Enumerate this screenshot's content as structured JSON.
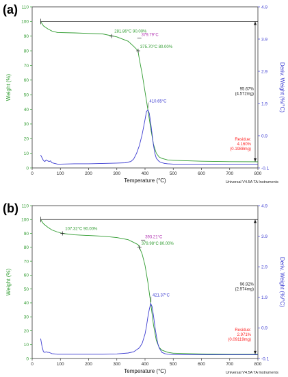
{
  "colors": {
    "weight": "#2e9b2e",
    "deriv": "#3a3ad0",
    "residue": "#ff2020",
    "annotation_dark": "#222222",
    "peak": "#b030b0",
    "axis": "#333333"
  },
  "chart_data": [
    {
      "type": "line",
      "panel_label": "(a)",
      "xlabel": "Temperature (°C)",
      "ylabel": "Weight (%)",
      "y2label": "Deriv. Weight (%/°C)",
      "xlim": [
        0,
        800
      ],
      "ylim": [
        0,
        110
      ],
      "y2lim": [
        -0.1,
        4.9
      ],
      "xticks": [
        "0",
        "100",
        "200",
        "300",
        "400",
        "500",
        "600",
        "700",
        "800"
      ],
      "yticks": [
        "0",
        "10",
        "20",
        "30",
        "40",
        "50",
        "60",
        "70",
        "80",
        "90",
        "100",
        "110"
      ],
      "y2ticks": [
        "-0.1",
        "0.9",
        "1.9",
        "2.9",
        "3.9",
        "4.9"
      ],
      "footer": "Universal V4.5A TA Instruments",
      "series": [
        {
          "axis": "left",
          "color": "weight",
          "x": [
            30,
            40,
            55,
            70,
            90,
            150,
            250,
            300,
            340,
            360,
            375,
            380,
            390,
            400,
            410,
            420,
            430,
            440,
            450,
            460,
            480,
            500,
            600,
            700,
            800
          ],
          "y": [
            100,
            97,
            95,
            93.5,
            92.5,
            92.2,
            91.5,
            89.5,
            86.5,
            83,
            80,
            74,
            64,
            52,
            40,
            27,
            16,
            10,
            7.5,
            6.5,
            5.5,
            5.2,
            4.6,
            4.3,
            4.2
          ]
        },
        {
          "axis": "right",
          "color": "deriv",
          "x": [
            30,
            35,
            40,
            45,
            50,
            55,
            60,
            65,
            70,
            80,
            90,
            100,
            150,
            200,
            250,
            300,
            330,
            350,
            360,
            370,
            380,
            390,
            400,
            405,
            410,
            415,
            420,
            425,
            430,
            435,
            440,
            450,
            460,
            470,
            480,
            500,
            550,
            600,
            650,
            700,
            750,
            800
          ],
          "y": [
            0.3,
            0.22,
            0.13,
            0.1,
            0.15,
            0.12,
            0.1,
            0.12,
            0.06,
            0.04,
            0.02,
            0.02,
            0.03,
            0.03,
            0.04,
            0.05,
            0.06,
            0.1,
            0.18,
            0.35,
            0.6,
            0.95,
            1.4,
            1.65,
            1.7,
            1.6,
            1.3,
            0.95,
            0.6,
            0.35,
            0.2,
            0.1,
            0.06,
            0.04,
            0.03,
            0.02,
            0.02,
            0.02,
            0.02,
            0.02,
            0.02,
            0.02
          ]
        }
      ],
      "annotations": {
        "onset": "281.86°C 90.00%",
        "endset": "379.79°C",
        "t80": "375.70°C 80.00%",
        "peak": "410.65°C",
        "loss": [
          "95.67%",
          "(4.572mg)"
        ],
        "residue": [
          "Residue:",
          "4.160%",
          "(0.1988mg)"
        ]
      },
      "annotation_points": {
        "onset": {
          "x": 281.86,
          "y": 90
        },
        "endset": {
          "x": 379.79,
          "y": 88.6
        },
        "t80": {
          "x": 375.7,
          "y": 80
        },
        "peak": {
          "x": 410.65,
          "y": 1.72
        },
        "loss_top": 100,
        "loss_bottom": 4.2
      }
    },
    {
      "type": "line",
      "panel_label": "(b)",
      "xlabel": "Temperature (°C)",
      "ylabel": "Weight (%)",
      "y2label": "Deriv. Weight (%/°C)",
      "xlim": [
        0,
        800
      ],
      "ylim": [
        0,
        110
      ],
      "y2lim": [
        -0.1,
        4.9
      ],
      "xticks": [
        "0",
        "100",
        "200",
        "300",
        "400",
        "500",
        "600",
        "700",
        "800"
      ],
      "yticks": [
        "0",
        "10",
        "20",
        "30",
        "40",
        "50",
        "60",
        "70",
        "80",
        "90",
        "100",
        "110"
      ],
      "y2ticks": [
        "-0.1",
        "0.9",
        "1.9",
        "2.9",
        "3.9",
        "4.9"
      ],
      "footer": "Universal V4.5A TA Instruments",
      "series": [
        {
          "axis": "left",
          "color": "weight",
          "x": [
            30,
            40,
            55,
            70,
            90,
            107.32,
            150,
            250,
            300,
            340,
            360,
            375,
            380,
            390,
            400,
            410,
            420,
            430,
            440,
            450,
            460,
            480,
            500,
            600,
            700,
            800
          ],
          "y": [
            100,
            97,
            94.5,
            92.5,
            91,
            90,
            89,
            88,
            87,
            85.5,
            83.5,
            82,
            80,
            75,
            67,
            55,
            40,
            24,
            13,
            8,
            6,
            4.5,
            3.8,
            3.3,
            3,
            3
          ]
        },
        {
          "axis": "right",
          "color": "deriv",
          "x": [
            30,
            35,
            40,
            45,
            50,
            55,
            60,
            65,
            70,
            80,
            90,
            100,
            150,
            200,
            250,
            300,
            340,
            360,
            380,
            390,
            400,
            405,
            410,
            415,
            420,
            425,
            430,
            435,
            440,
            445,
            450,
            460,
            470,
            480,
            500,
            550,
            600,
            650,
            700,
            750,
            800
          ],
          "y": [
            0.55,
            0.3,
            0.12,
            0.1,
            0.12,
            0.1,
            0.1,
            0.08,
            0.06,
            0.05,
            0.04,
            0.04,
            0.04,
            0.04,
            0.04,
            0.05,
            0.08,
            0.12,
            0.25,
            0.4,
            0.7,
            0.95,
            1.25,
            1.5,
            1.7,
            1.6,
            1.3,
            0.95,
            0.65,
            0.4,
            0.25,
            0.1,
            0.06,
            0.04,
            0.03,
            0.02,
            0.02,
            0.02,
            0.02,
            0.02,
            0.02
          ]
        }
      ],
      "annotations": {
        "onset": "107.32°C 90.00%",
        "endset": "393.21°C",
        "t80": "379.98°C 80.00%",
        "peak": "421.37°C",
        "loss": [
          "96.92%",
          "(2.974mg)"
        ],
        "residue": [
          "Residue:",
          "2.971%",
          "(0.09119mg)"
        ]
      },
      "annotation_points": {
        "onset": {
          "x": 107.32,
          "y": 90
        },
        "endset": {
          "x": 393.21,
          "y": 85.2
        },
        "t80": {
          "x": 379.98,
          "y": 80
        },
        "peak": {
          "x": 421.37,
          "y": 1.7
        },
        "loss_top": 100,
        "loss_bottom": 3
      }
    }
  ]
}
